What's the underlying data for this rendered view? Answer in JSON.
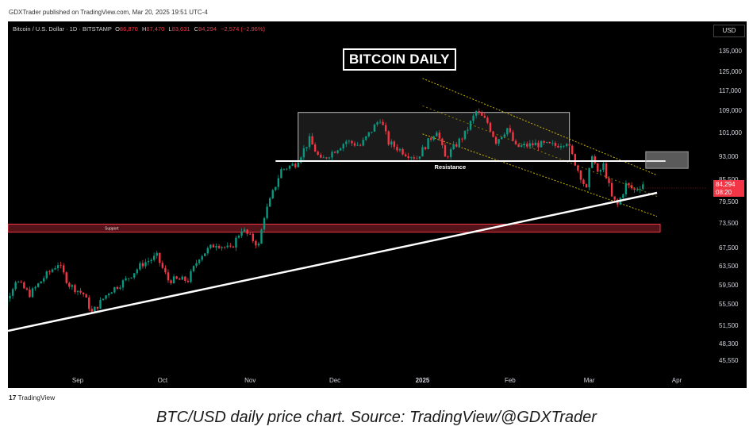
{
  "published": "GDXTrader published on TradingView.com, Mar 20, 2025 19:51 UTC-4",
  "symbol": {
    "name": "Bitcoin / U.S. Dollar · 1D · BITSTAMP",
    "open_label": "O",
    "open": "86,870",
    "high_label": "H",
    "high": "87,470",
    "low_label": "L",
    "low": "83,631",
    "close_label": "C",
    "close": "84,294",
    "change": "−2,574 (−2.96%)"
  },
  "currency": "USD",
  "title": "BITCOIN DAILY",
  "footer": {
    "logo_mark": "17",
    "logo_text": "TradingView"
  },
  "caption": "BTC/USD daily price chart. Source: TradingView/@GDXTrader",
  "colors": {
    "up": "#089981",
    "down": "#f23645",
    "background": "#000000",
    "price_tag": "#f23645"
  },
  "chart_data": {
    "type": "candlestick",
    "y_ticks": [
      135000,
      125000,
      117000,
      109000,
      101000,
      93000,
      85500,
      79500,
      73500,
      67500,
      63500,
      59500,
      55500,
      51500,
      48300,
      45550
    ],
    "y_tick_labels": [
      "135,000",
      "125,000",
      "117,000",
      "109,000",
      "101,000",
      "93,000",
      "85,500",
      "79,500",
      "73,500",
      "67,500",
      "63,500",
      "59,500",
      "55,500",
      "51,500",
      "48,300",
      "45,550"
    ],
    "scale": "log",
    "x_tick_labels": [
      "Sep",
      "Oct",
      "Nov",
      "Dec",
      "2025",
      "Feb",
      "Mar",
      "Apr"
    ],
    "x_tick_dates": [
      "2024-09-01",
      "2024-10-01",
      "2024-11-01",
      "2024-12-01",
      "2025-01-01",
      "2025-02-01",
      "2025-03-01",
      "2025-04-01"
    ],
    "last_price": "84,294",
    "countdown": "08:20",
    "series_anchor_closes": [
      [
        "2024-08-01",
        64500
      ],
      [
        "2024-08-05",
        54000
      ],
      [
        "2024-08-10",
        60500
      ],
      [
        "2024-08-15",
        57500
      ],
      [
        "2024-08-20",
        61000
      ],
      [
        "2024-08-25",
        64000
      ],
      [
        "2024-08-29",
        59500
      ],
      [
        "2024-09-03",
        57500
      ],
      [
        "2024-09-06",
        53800
      ],
      [
        "2024-09-12",
        58000
      ],
      [
        "2024-09-18",
        60500
      ],
      [
        "2024-09-24",
        64000
      ],
      [
        "2024-09-29",
        65500
      ],
      [
        "2024-10-03",
        60500
      ],
      [
        "2024-10-10",
        60500
      ],
      [
        "2024-10-14",
        65500
      ],
      [
        "2024-10-20",
        68500
      ],
      [
        "2024-10-25",
        67000
      ],
      [
        "2024-10-29",
        72000
      ],
      [
        "2024-11-04",
        68000
      ],
      [
        "2024-11-06",
        75500
      ],
      [
        "2024-11-12",
        88500
      ],
      [
        "2024-11-17",
        90500
      ],
      [
        "2024-11-22",
        98500
      ],
      [
        "2024-11-26",
        91500
      ],
      [
        "2024-12-05",
        98000
      ],
      [
        "2024-12-10",
        96500
      ],
      [
        "2024-12-17",
        106000
      ],
      [
        "2024-12-20",
        97500
      ],
      [
        "2024-12-26",
        94000
      ],
      [
        "2024-12-30",
        92500
      ],
      [
        "2025-01-06",
        102000
      ],
      [
        "2025-01-09",
        92500
      ],
      [
        "2025-01-16",
        100500
      ],
      [
        "2025-01-20",
        108500
      ],
      [
        "2025-01-24",
        104500
      ],
      [
        "2025-01-27",
        98000
      ],
      [
        "2025-01-31",
        102500
      ],
      [
        "2025-02-03",
        96000
      ],
      [
        "2025-02-10",
        97000
      ],
      [
        "2025-02-17",
        96500
      ],
      [
        "2025-02-21",
        98000
      ],
      [
        "2025-02-25",
        88500
      ],
      [
        "2025-02-28",
        82500
      ],
      [
        "2025-03-02",
        94000
      ],
      [
        "2025-03-04",
        87000
      ],
      [
        "2025-03-06",
        90000
      ],
      [
        "2025-03-09",
        80500
      ],
      [
        "2025-03-11",
        78500
      ],
      [
        "2025-03-14",
        84000
      ],
      [
        "2025-03-17",
        82500
      ],
      [
        "2025-03-20",
        84294
      ]
    ],
    "annotations": [
      {
        "type": "rectangle",
        "label": "",
        "from": [
          "2024-11-18",
          108200
        ],
        "to": [
          "2025-02-22",
          91400
        ]
      },
      {
        "type": "hline",
        "label": "Resistance",
        "value": 91400,
        "from": "2024-11-10",
        "to": "2025-03-28"
      },
      {
        "type": "rectangle",
        "label": "",
        "from": [
          "2025-03-21",
          94500
        ],
        "to": [
          "2025-04-05",
          89000
        ]
      },
      {
        "type": "zone",
        "label": "Support",
        "from_value": 73200,
        "to_value": 71200
      },
      {
        "type": "trendline",
        "label": "",
        "from": [
          "2024-08-01",
          50500
        ],
        "to": [
          "2025-03-25",
          81800
        ]
      },
      {
        "type": "channel",
        "label": "",
        "upper_from": [
          "2025-01-01",
          122000
        ],
        "upper_to": [
          "2025-03-25",
          86800
        ],
        "lower_from": [
          "2025-01-01",
          100500
        ],
        "lower_to": [
          "2025-03-25",
          75300
        ]
      }
    ]
  }
}
